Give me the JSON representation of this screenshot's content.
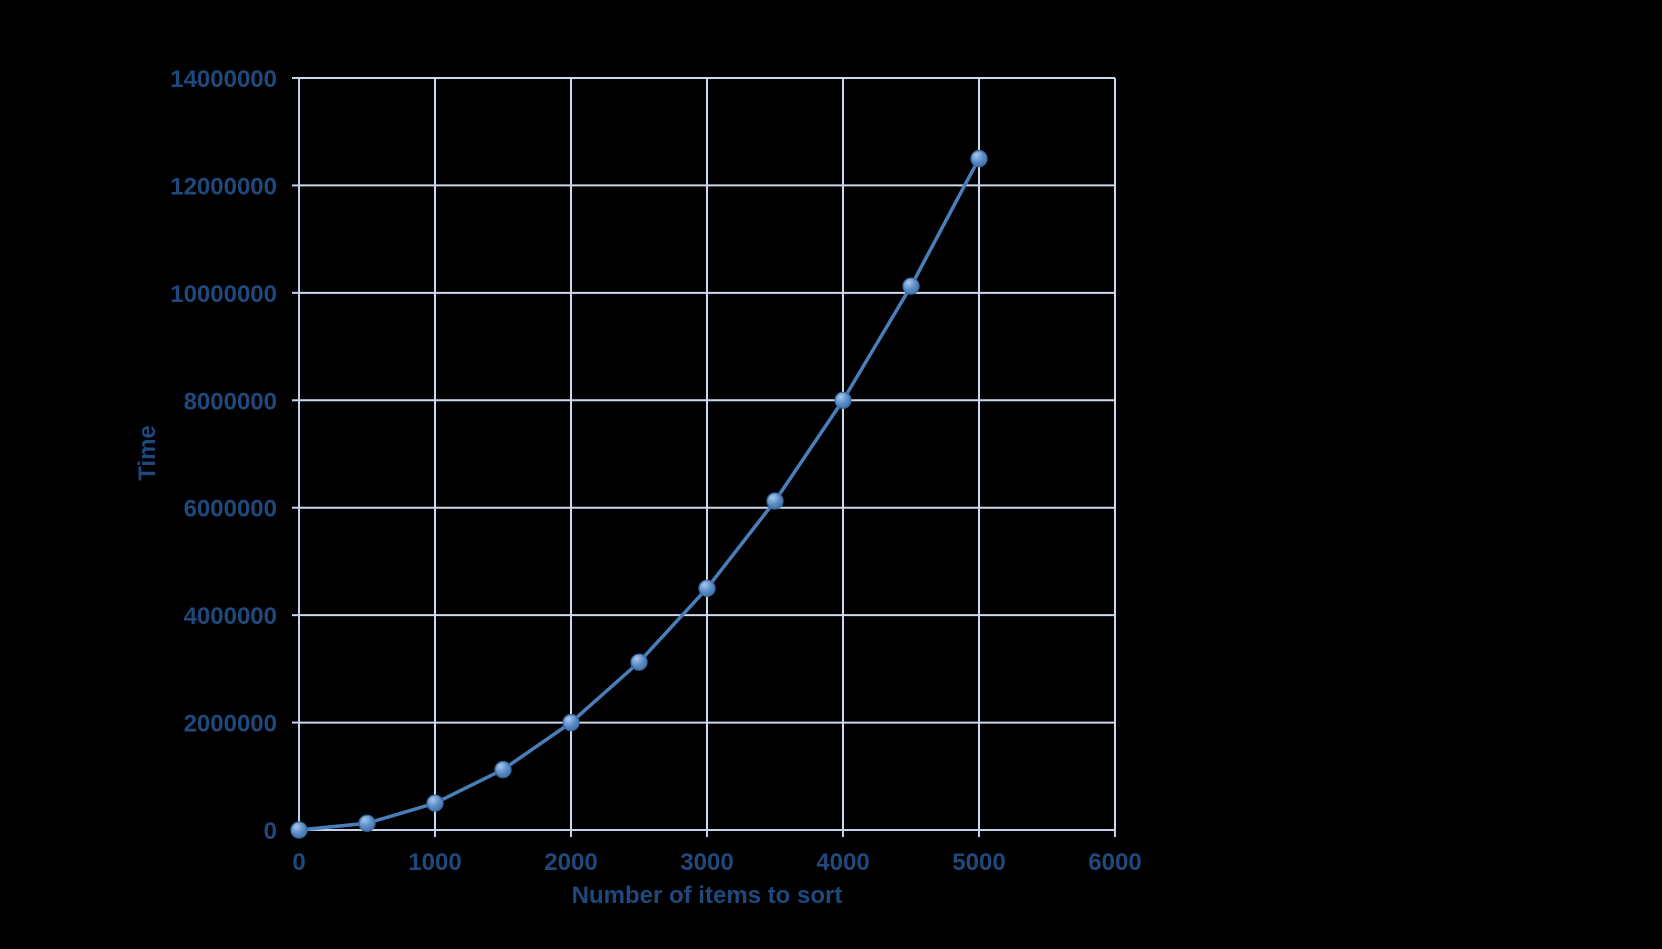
{
  "chart_data": {
    "type": "scatter",
    "title": "",
    "xlabel": "Number of items to sort",
    "ylabel": "Time",
    "x": [
      0,
      500,
      1000,
      1500,
      2000,
      2500,
      3000,
      3500,
      4000,
      4500,
      5000
    ],
    "series": [
      {
        "name": "Time",
        "values": [
          0,
          125000,
          500000,
          1125000,
          2000000,
          3125000,
          4500000,
          6125000,
          8000000,
          10125000,
          12500000
        ]
      }
    ],
    "xlim": [
      0,
      6000
    ],
    "ylim": [
      0,
      14000000
    ],
    "x_ticks": [
      0,
      1000,
      2000,
      3000,
      4000,
      5000,
      6000
    ],
    "y_ticks": [
      0,
      2000000,
      4000000,
      6000000,
      8000000,
      10000000,
      12000000,
      14000000
    ],
    "grid": true,
    "legend": false,
    "line_style": "straight",
    "markers": "circle"
  },
  "colors": {
    "background": "#000000",
    "grid": "#CDD9EC",
    "axis": "#C3D2E8",
    "tick_label": "#1F497D",
    "axis_title": "#1F497D",
    "line": "#4A7EBB",
    "marker_highlight": "#A9C7E9",
    "marker_mid": "#5B8CC8",
    "marker_edge": "#41709F",
    "marker_rim": "#3A689F"
  }
}
